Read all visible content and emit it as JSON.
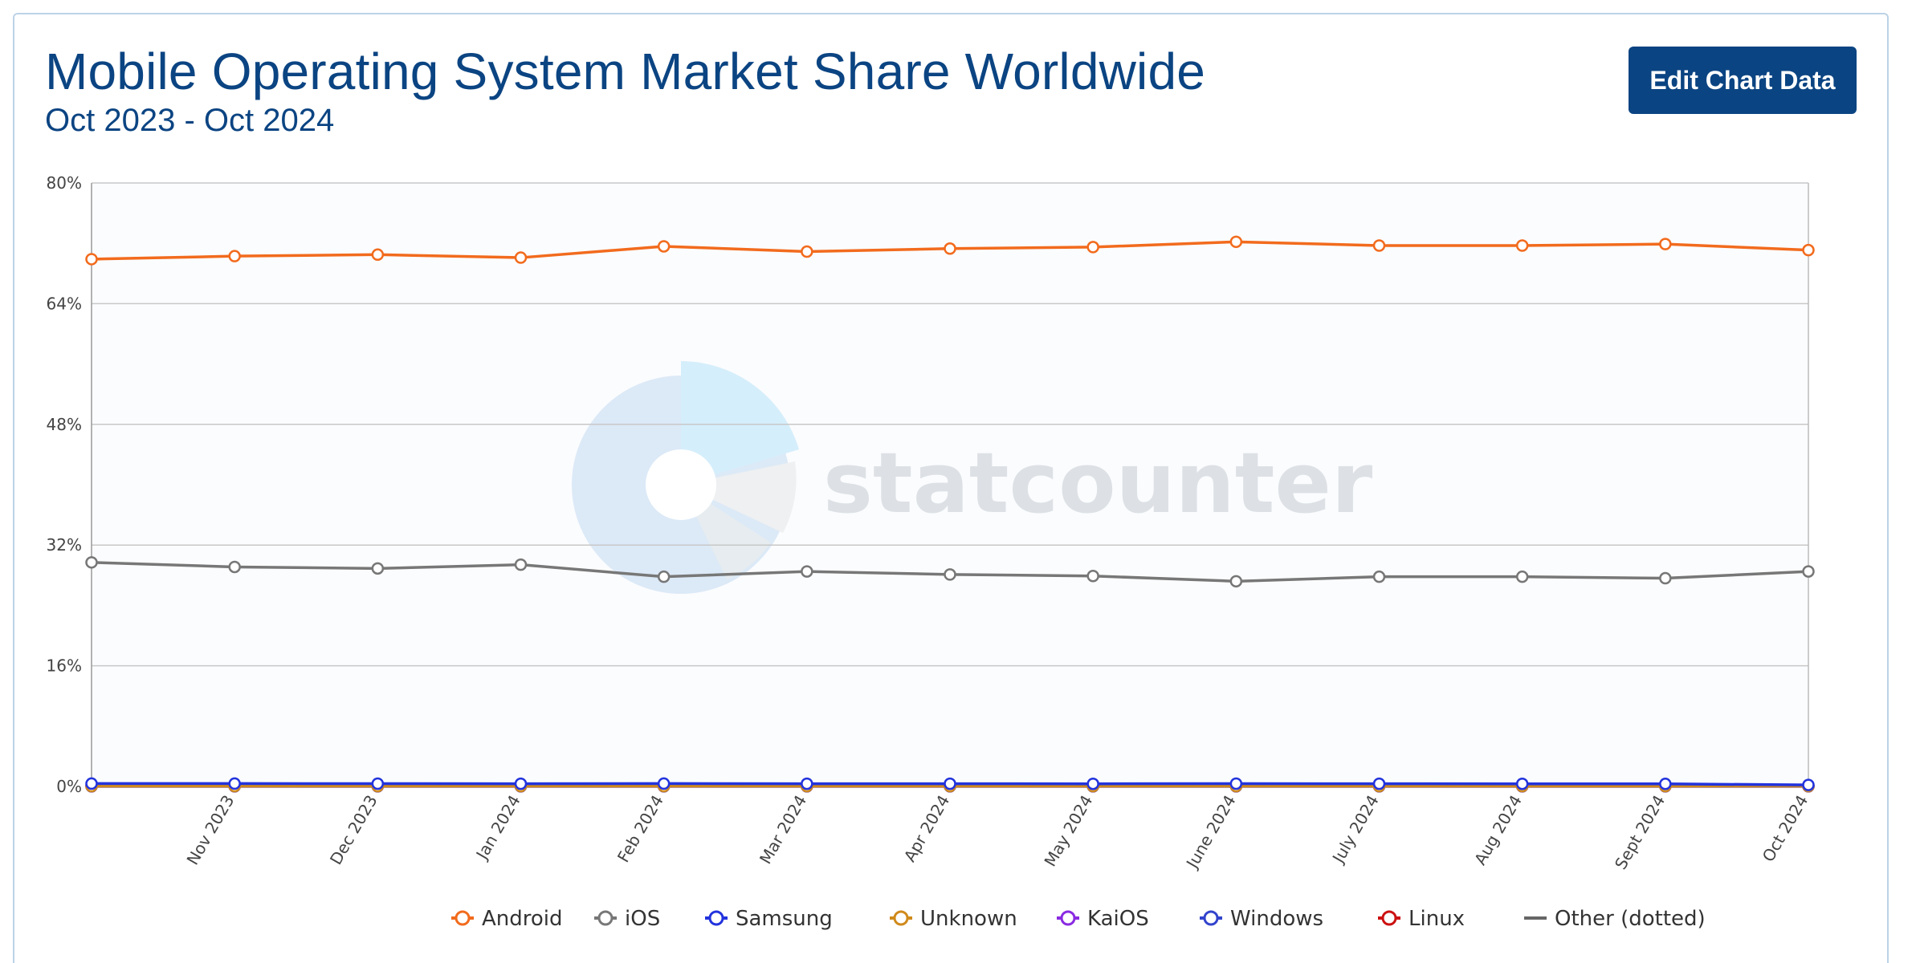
{
  "header": {
    "title": "Mobile Operating System Market Share Worldwide",
    "subtitle": "Oct 2023 - Oct 2024",
    "edit_button_label": "Edit Chart Data"
  },
  "watermark": {
    "text": "statcounter"
  },
  "colors": {
    "accent": "#0b4482",
    "plot_background": "#fbfcfe",
    "gridline": "#c8c8c8"
  },
  "chart_data": {
    "type": "line",
    "x": [
      "Oct 2023",
      "Nov 2023",
      "Dec 2023",
      "Jan 2024",
      "Feb 2024",
      "Mar 2024",
      "Apr 2024",
      "May 2024",
      "June 2024",
      "July 2024",
      "Aug 2024",
      "Sept 2024",
      "Oct 2024"
    ],
    "x_tick_labels": [
      "Nov 2023",
      "Dec 2023",
      "Jan 2024",
      "Feb 2024",
      "Mar 2024",
      "Apr 2024",
      "May 2024",
      "June 2024",
      "July 2024",
      "Aug 2024",
      "Sept 2024",
      "Oct 2024"
    ],
    "ylim": [
      0,
      80
    ],
    "y_ticks": [
      0,
      16,
      32,
      48,
      64,
      80
    ],
    "y_tick_labels": [
      "0%",
      "16%",
      "32%",
      "48%",
      "64%",
      "80%"
    ],
    "grid": true,
    "legend_position": "bottom",
    "series": [
      {
        "name": "Android",
        "color": "#f26b1d",
        "marker": "circle",
        "values": [
          69.9,
          70.3,
          70.5,
          70.1,
          71.6,
          70.9,
          71.3,
          71.5,
          72.2,
          71.7,
          71.7,
          71.9,
          71.1
        ]
      },
      {
        "name": "iOS",
        "color": "#777777",
        "marker": "circle",
        "values": [
          29.7,
          29.1,
          28.9,
          29.4,
          27.8,
          28.5,
          28.1,
          27.9,
          27.2,
          27.8,
          27.8,
          27.6,
          28.5
        ]
      },
      {
        "name": "Samsung",
        "color": "#2233dd",
        "marker": "circle",
        "values": [
          0.38,
          0.38,
          0.37,
          0.36,
          0.38,
          0.36,
          0.36,
          0.35,
          0.37,
          0.36,
          0.35,
          0.34,
          0.2
        ]
      },
      {
        "name": "Unknown",
        "color": "#d08a1c",
        "marker": "circle",
        "values": [
          0.05,
          0.05,
          0.05,
          0.05,
          0.05,
          0.05,
          0.05,
          0.05,
          0.05,
          0.05,
          0.05,
          0.05,
          0.05
        ]
      },
      {
        "name": "KaiOS",
        "color": "#8a2be2",
        "marker": "circle",
        "values": [
          0.15,
          0.14,
          0.14,
          0.13,
          0.13,
          0.12,
          0.12,
          0.12,
          0.11,
          0.11,
          0.1,
          0.1,
          0.08
        ]
      },
      {
        "name": "Windows",
        "color": "#3344cc",
        "marker": "circle",
        "values": [
          0.02,
          0.02,
          0.02,
          0.02,
          0.02,
          0.02,
          0.02,
          0.02,
          0.02,
          0.02,
          0.02,
          0.02,
          0.02
        ]
      },
      {
        "name": "Linux",
        "color": "#cc1111",
        "marker": "circle",
        "values": [
          0.01,
          0.01,
          0.01,
          0.01,
          0.01,
          0.01,
          0.01,
          0.01,
          0.01,
          0.01,
          0.01,
          0.01,
          0.01
        ]
      },
      {
        "name": "Other (dotted)",
        "color": "#666666",
        "marker": "line",
        "values": [
          0.04,
          0.04,
          0.04,
          0.04,
          0.04,
          0.04,
          0.04,
          0.04,
          0.04,
          0.04,
          0.04,
          0.04,
          0.04
        ]
      }
    ]
  }
}
